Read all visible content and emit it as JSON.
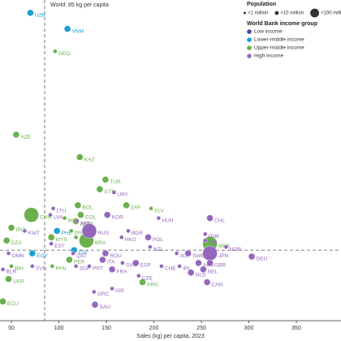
{
  "chart_data": {
    "type": "scatter",
    "x_label": "Sales (kg) per capita, 2023",
    "annotation": "World: 85 kg per capita",
    "x_reference": 85,
    "y_reference": 22,
    "xlim": [
      38,
      397
    ],
    "ylim": [
      0,
      100
    ],
    "xticks": [
      50,
      100,
      150,
      200,
      250,
      300,
      350
    ],
    "population_title": "Population",
    "population_legend": [
      {
        "size": 1,
        "label": ">1 million"
      },
      {
        "size": 10,
        "label": ">10 million"
      },
      {
        "size": 100,
        "label": ">100 million"
      }
    ],
    "legend_title": "World Bank income group",
    "legend_position": "upper right",
    "series": [
      {
        "name": "Low income",
        "color": "#3b4a9c",
        "labels": [],
        "x": [],
        "values": [],
        "sizes": []
      },
      {
        "name": "Lower-middle income",
        "color": "#1aa0d8",
        "labels": [
          "UZB",
          "VNM",
          "PHL",
          "CIV",
          "EGY"
        ],
        "x": [
          70,
          109,
          98,
          116,
          72
        ],
        "values": [
          96,
          91,
          28,
          22,
          21
        ],
        "sizes": [
          10,
          10,
          10,
          10,
          10
        ]
      },
      {
        "name": "Upper-middle income",
        "color": "#6ab04c",
        "labels": [
          "GEO",
          "AZE",
          "KAZ",
          "TUR",
          "BOL",
          "GTM",
          "COL",
          "ZAF",
          "SLV",
          "CHN",
          "MKD",
          "DOM",
          "IRQ",
          "PRY",
          "DZA",
          "MYS",
          "SRB",
          "BRA",
          "MEX",
          "PER",
          "BIH",
          "PAN",
          "UKR",
          "ARG",
          "ECU"
        ],
        "x": [
          96,
          55,
          122,
          149,
          120,
          143,
          123,
          171,
          197,
          71,
          106,
          118,
          50,
          113,
          45,
          92,
          118,
          129,
          259,
          111,
          50,
          93,
          47,
          188,
          41
        ],
        "values": [
          84,
          58,
          51,
          44,
          36,
          41,
          33,
          36,
          35,
          33,
          32,
          31,
          29,
          28,
          25,
          26,
          26,
          25,
          24,
          19,
          17,
          17,
          13,
          12,
          6
        ],
        "sizes": [
          1,
          10,
          10,
          10,
          10,
          10,
          10,
          10,
          1,
          100,
          1,
          10,
          10,
          1,
          10,
          10,
          1,
          100,
          100,
          10,
          1,
          1,
          10,
          10,
          10
        ]
      },
      {
        "name": "High income",
        "color": "#9467bd",
        "labels": [
          "LTU",
          "LVA",
          "URY",
          "KOR",
          "ARE",
          "KWT",
          "RUS",
          "HUN",
          "CHL",
          "HKG",
          "BGR",
          "POL",
          "DNK",
          "FIN",
          "EST",
          "NZL",
          "OMN",
          "QAT",
          "ROU",
          "AUT",
          "SWE",
          "JPN",
          "NOR",
          "DEU",
          "BLR",
          "ITA",
          "ESP",
          "SVK",
          "CHE",
          "IRL",
          "AUS",
          "GBR",
          "SVN",
          "SGP",
          "PRT",
          "FRA",
          "NLD",
          "BEL",
          "CZE",
          "CAN",
          "ISR",
          "GRC",
          "SAU"
        ],
        "x": [
          94,
          91,
          158,
          151,
          119,
          64,
          132,
          205,
          259,
          166,
          173,
          194,
          254,
          254,
          92,
          196,
          47,
          115,
          149,
          224,
          236,
          259,
          276,
          303,
          41,
          146,
          181,
          167,
          208,
          227,
          247,
          259,
          72,
          118,
          132,
          156,
          239,
          252,
          184,
          256,
          156,
          137,
          138
        ],
        "values": [
          35,
          33,
          40,
          33,
          31,
          28,
          28,
          32,
          32,
          26,
          28,
          26,
          27,
          25,
          24,
          23,
          21,
          21,
          21,
          21,
          21,
          21,
          23,
          20,
          16,
          19,
          18,
          18,
          17,
          17,
          18,
          18,
          17,
          17,
          17,
          16,
          15,
          16,
          14,
          12,
          10,
          9,
          5
        ],
        "sizes": [
          1,
          1,
          1,
          10,
          1,
          1,
          100,
          1,
          10,
          1,
          1,
          10,
          1,
          1,
          1,
          1,
          1,
          1,
          10,
          1,
          10,
          100,
          1,
          10,
          1,
          10,
          10,
          1,
          1,
          1,
          10,
          10,
          1,
          1,
          1,
          10,
          10,
          10,
          1,
          10,
          1,
          1,
          10
        ]
      }
    ]
  }
}
